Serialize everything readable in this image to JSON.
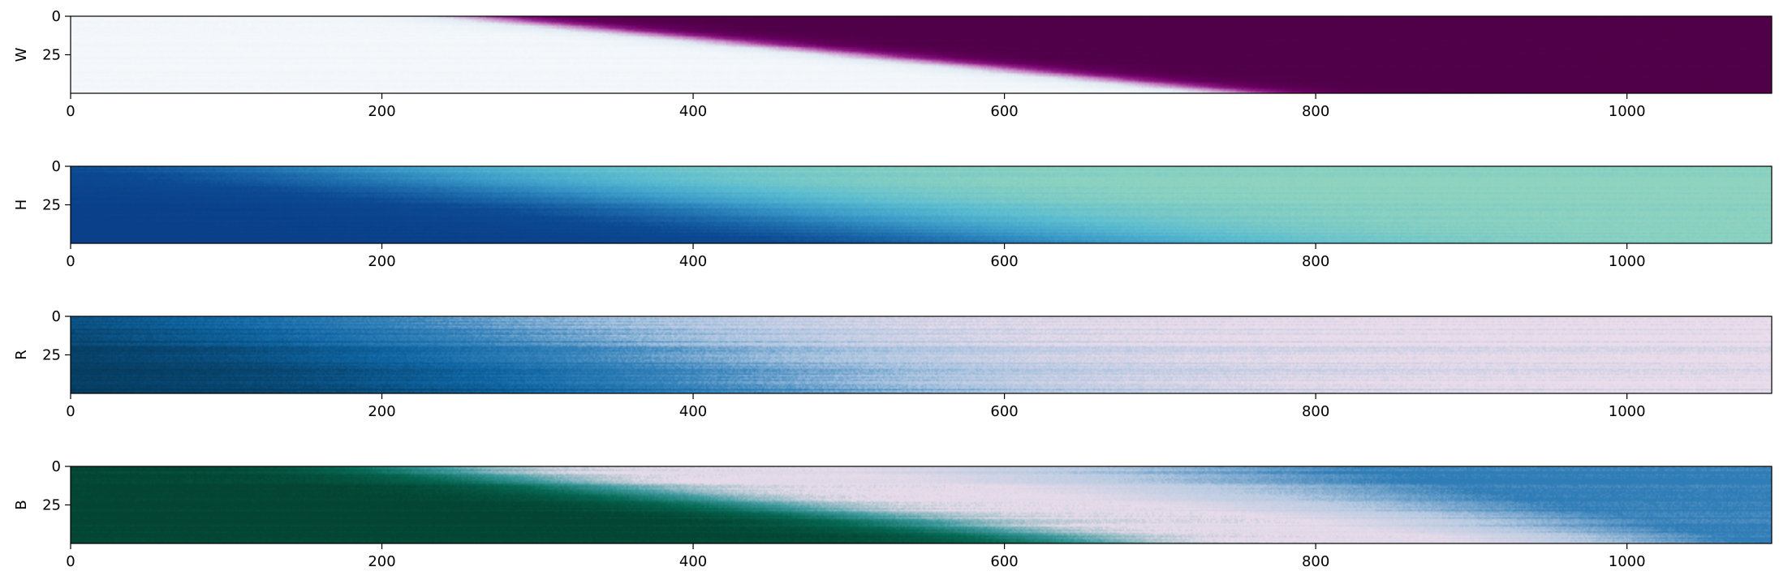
{
  "chart_data": [
    {
      "type": "heatmap",
      "ylabel": "W",
      "xlim": [
        0,
        1093
      ],
      "ylim": [
        50,
        0
      ],
      "xticks": [
        0,
        200,
        400,
        600,
        800,
        1000
      ],
      "xtick_labels": [
        "0",
        "200",
        "400",
        "600",
        "800",
        "1000"
      ],
      "yticks": [
        0,
        25
      ],
      "ytick_labels": [
        "0",
        "25"
      ],
      "colormap": "PuBu-to-purple (light at 0, dark purple at 1)",
      "colors": [
        "#f4f8fb",
        "#e1ebf3",
        "#c98bc6",
        "#8f1b86",
        "#67005f",
        "#4f0047"
      ],
      "field": {
        "description": "diagonal transition front",
        "front_x_at_row0": 270,
        "front_x_at_row50": 760,
        "transition_width": 170,
        "low_value_side": "left",
        "noise": 0.04
      }
    },
    {
      "type": "heatmap",
      "ylabel": "H",
      "xlim": [
        0,
        1093
      ],
      "ylim": [
        50,
        0
      ],
      "xticks": [
        0,
        200,
        400,
        600,
        800,
        1000
      ],
      "xtick_labels": [
        "0",
        "200",
        "400",
        "600",
        "800",
        "1000"
      ],
      "yticks": [
        0,
        25
      ],
      "ytick_labels": [
        "0",
        "25"
      ],
      "colormap": "GnBu reversed (dark blue low, green-cyan high)",
      "colors": [
        "#0a3f89",
        "#0c4a93",
        "#1f6fae",
        "#3b9ac8",
        "#5cbdd0",
        "#8fd3bf"
      ],
      "field": {
        "description": "diagonal gradient",
        "front_x_at_row0": 140,
        "front_x_at_row50": 620,
        "transition_width": 700,
        "low_value_side": "left",
        "noise": 0.05
      }
    },
    {
      "type": "heatmap",
      "ylabel": "R",
      "xlim": [
        0,
        1093
      ],
      "ylim": [
        50,
        0
      ],
      "xticks": [
        0,
        200,
        400,
        600,
        800,
        1000
      ],
      "xtick_labels": [
        "0",
        "200",
        "400",
        "600",
        "800",
        "1000"
      ],
      "yticks": [
        0,
        25
      ],
      "ytick_labels": [
        "0",
        "25"
      ],
      "colormap": "PuBu reversed (dark navy low, light pink high)",
      "colors": [
        "#053653",
        "#08456f",
        "#0f66a3",
        "#3a86bd",
        "#a8c3df",
        "#eadcea"
      ],
      "field": {
        "description": "mostly horizontal gradient, slight diagonal",
        "front_x_at_row0": 150,
        "front_x_at_row50": 380,
        "transition_width": 950,
        "low_value_side": "left",
        "noise": 0.09
      }
    },
    {
      "type": "heatmap",
      "ylabel": "B",
      "xlim": [
        0,
        1093
      ],
      "ylim": [
        50,
        0
      ],
      "xticks": [
        0,
        200,
        400,
        600,
        800,
        1000
      ],
      "xtick_labels": [
        "0",
        "200",
        "400",
        "600",
        "800",
        "1000"
      ],
      "yticks": [
        0,
        25
      ],
      "ytick_labels": [
        "0",
        "25"
      ],
      "colormap": "diverging green–pink–blue",
      "colors": [
        "#034532",
        "#066a55",
        "#3d9a9e",
        "#eadcea",
        "#b9cbe1",
        "#2f7db7"
      ],
      "field": {
        "description": "diagonal front from green to pink, then drift to blue",
        "front_x_at_row0": 200,
        "front_x_at_row50": 640,
        "transition_width": 260,
        "low_value_side": "left",
        "high_drift": 0.35,
        "noise": 0.05
      }
    }
  ]
}
